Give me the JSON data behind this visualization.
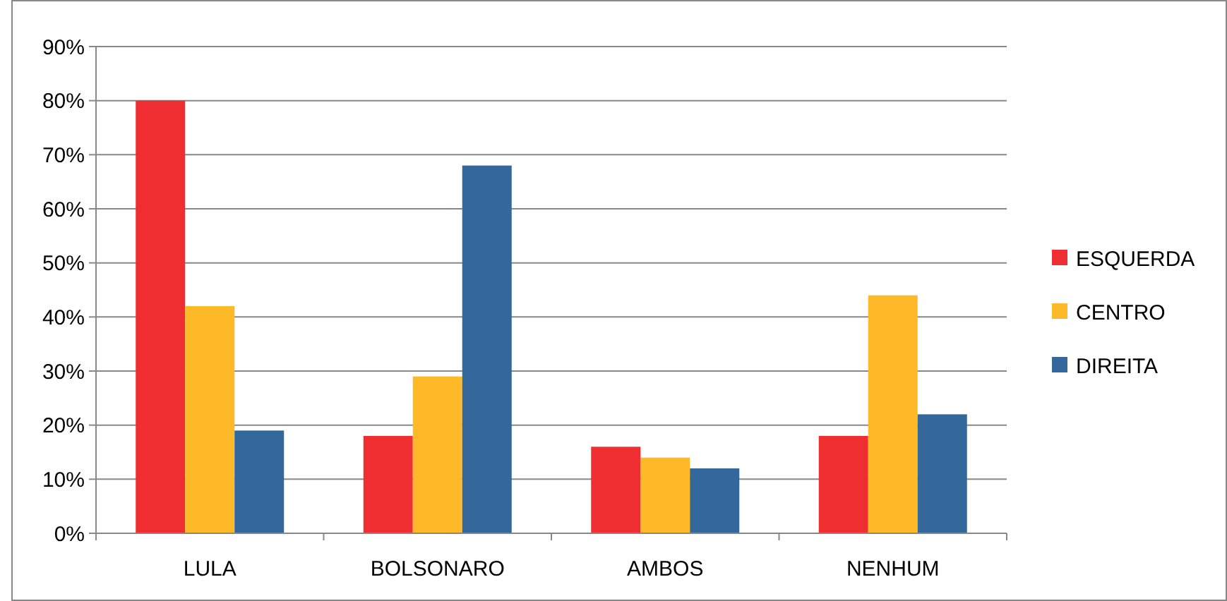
{
  "chart_data": {
    "type": "bar",
    "categories": [
      "LULA",
      "BOLSONARO",
      "AMBOS",
      "NENHUM"
    ],
    "series": [
      {
        "name": "ESQUERDA",
        "color": "#ee2e31",
        "values": [
          80,
          18,
          16,
          18
        ]
      },
      {
        "name": "CENTRO",
        "color": "#fdb927",
        "values": [
          42,
          29,
          14,
          44
        ]
      },
      {
        "name": "DIREITA",
        "color": "#34689c",
        "values": [
          19,
          68,
          12,
          22
        ]
      }
    ],
    "ylim": [
      0,
      90
    ],
    "yticks": [
      {
        "value": 0,
        "label": "0%"
      },
      {
        "value": 10,
        "label": "10%"
      },
      {
        "value": 20,
        "label": "20%"
      },
      {
        "value": 30,
        "label": "30%"
      },
      {
        "value": 40,
        "label": "40%"
      },
      {
        "value": 50,
        "label": "50%"
      },
      {
        "value": 60,
        "label": "60%"
      },
      {
        "value": 70,
        "label": "70%"
      },
      {
        "value": 80,
        "label": "80%"
      },
      {
        "value": 90,
        "label": "90%"
      }
    ],
    "grid": "y",
    "legend": "right"
  }
}
